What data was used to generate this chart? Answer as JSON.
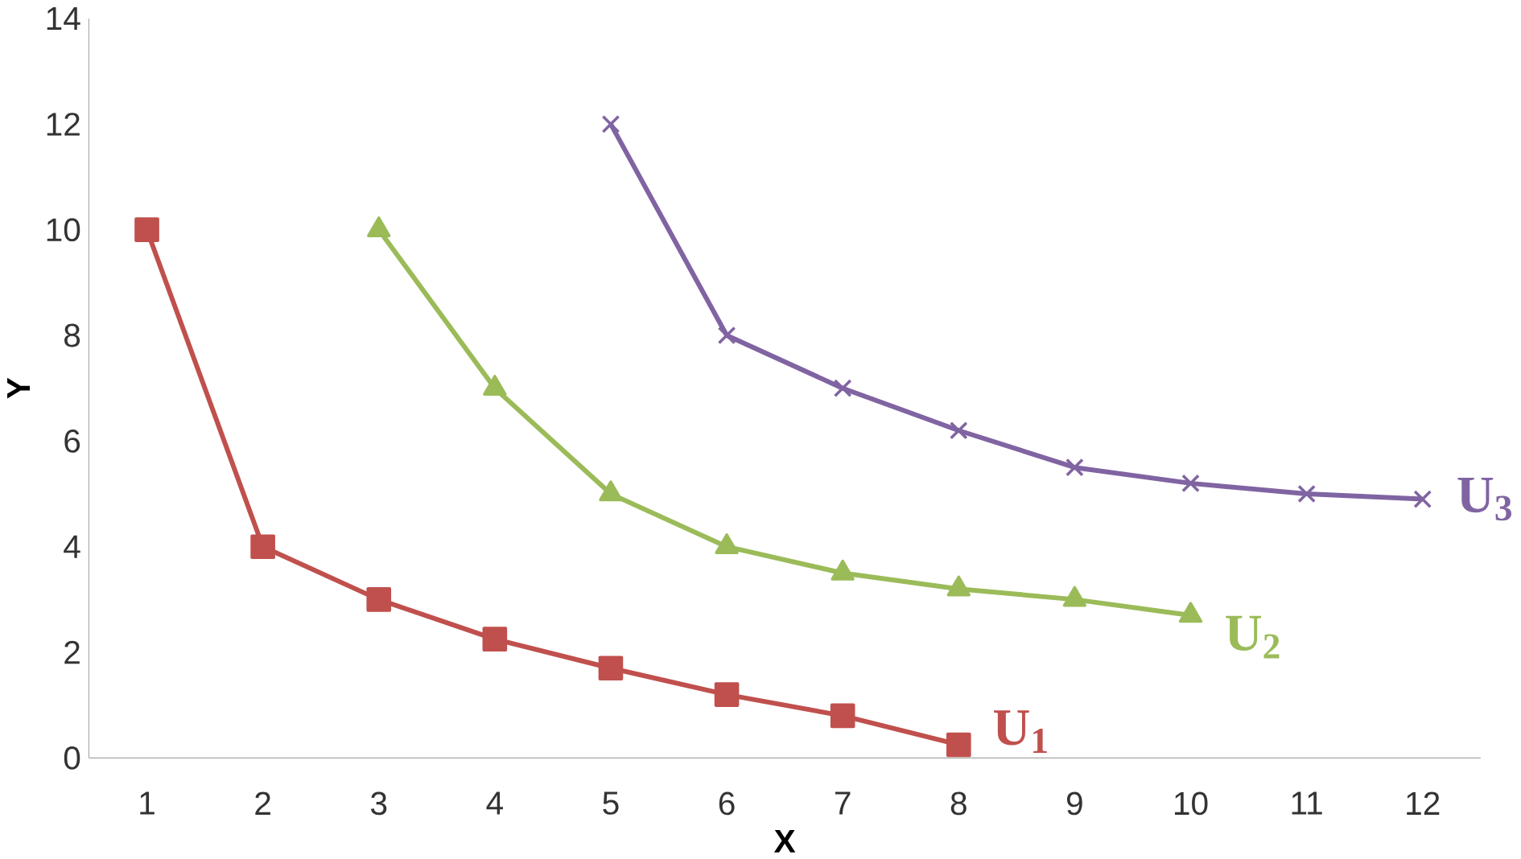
{
  "chart_data": {
    "type": "line",
    "xlabel": "X",
    "ylabel": "Y",
    "xlim": [
      0.5,
      12.5
    ],
    "xticks": [
      1,
      2,
      3,
      4,
      5,
      6,
      7,
      8,
      9,
      10,
      11,
      12
    ],
    "ylim": [
      0,
      14
    ],
    "yticks": [
      0,
      2,
      4,
      6,
      8,
      10,
      12,
      14
    ],
    "grid": false,
    "legend": false,
    "series": [
      {
        "name": "U$_{1}$",
        "color": "#c0504d",
        "marker": "square",
        "x": [
          1,
          2,
          3,
          4,
          5,
          6,
          7,
          8
        ],
        "values": [
          10,
          4,
          3,
          2.25,
          1.7,
          1.2,
          0.8,
          0.25
        ]
      },
      {
        "name": "U$_{2}$",
        "color": "#9bbb59",
        "marker": "triangle",
        "x": [
          3,
          4,
          5,
          6,
          7,
          8,
          9,
          10
        ],
        "values": [
          10,
          7,
          5,
          4,
          3.5,
          3.2,
          3,
          2.7
        ]
      },
      {
        "name": "U$_{3}$",
        "color": "#8064a2",
        "marker": "cross",
        "x": [
          5,
          6,
          7,
          8,
          9,
          10,
          11,
          12
        ],
        "values": [
          12,
          8,
          7,
          6.2,
          5.5,
          5.2,
          5,
          4.9
        ]
      }
    ]
  }
}
